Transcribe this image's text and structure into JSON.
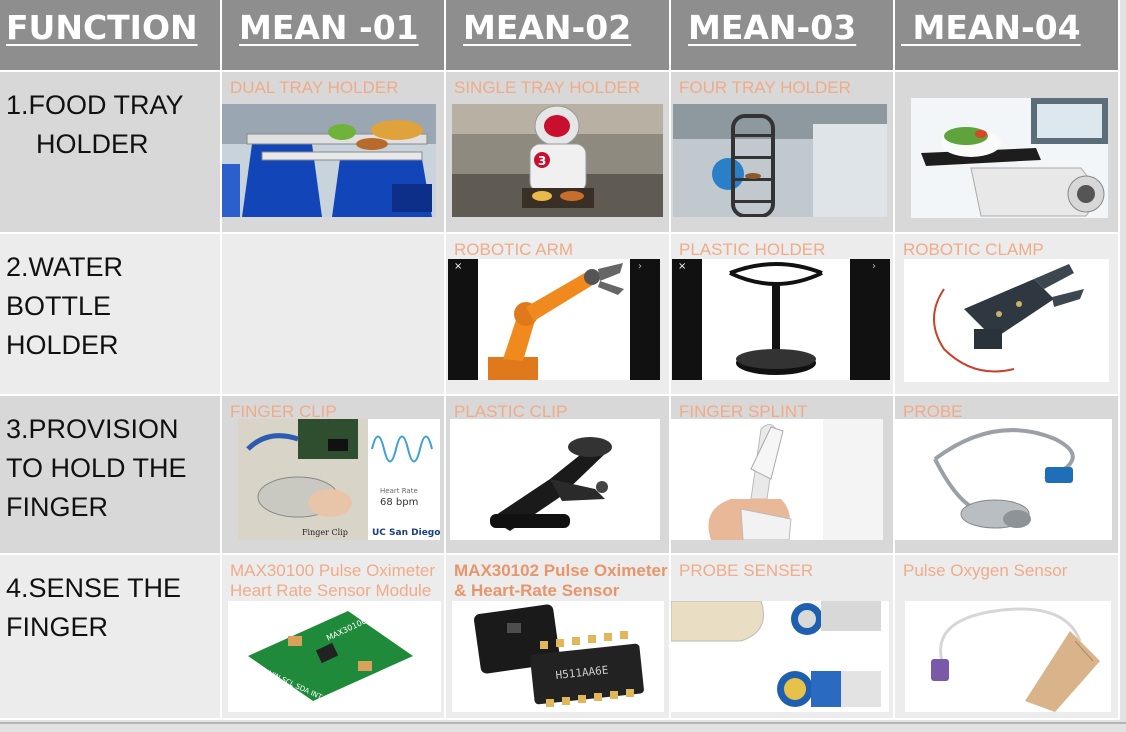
{
  "header": {
    "function": "FUNCTION",
    "mean1": "MEAN -01",
    "mean2": "MEAN-02",
    "mean3": "MEAN-03",
    "mean4": " MEAN-04"
  },
  "rows": [
    {
      "function": "1.FOOD TRAY\n    HOLDER",
      "means": [
        "DUAL TRAY HOLDER",
        "SINGLE TRAY HOLDER",
        "FOUR TRAY HOLDER",
        ""
      ]
    },
    {
      "function": "2.WATER\nBOTTLE\nHOLDER",
      "means": [
        "",
        "ROBOTIC ARM",
        "PLASTIC HOLDER",
        "ROBOTIC CLAMP"
      ]
    },
    {
      "function": "3.PROVISION\nTO HOLD THE\nFINGER",
      "means": [
        "FINGER CLIP",
        "PLASTIC CLIP",
        "FINGER SPLINT",
        "PROBE"
      ]
    },
    {
      "function": "4.SENSE THE\nFINGER",
      "means": [
        "MAX30100 Pulse Oximeter\nHeart Rate Sensor Module",
        "MAX30102 Pulse Oximeter\n& Heart-Rate Sensor",
        "PROBE SENSER",
        "Pulse Oxygen Sensor"
      ]
    }
  ],
  "image_text": {
    "heart_rate_label": "Heart Rate",
    "bpm": "68 bpm",
    "finger_clip_caption": "Finger Clip",
    "uc_logo": "UC San Diego",
    "chip_marking": "H511AA6E",
    "robot_badge": "3",
    "module_marking": "MAX30100",
    "module_pins": "VIN SCL SDA INT IRD RD GND"
  },
  "colors": {
    "header_bg": "#8e8e8e",
    "label_orange": "#f0ab88",
    "row_dark": "#d8d8d8",
    "row_light": "#ececec"
  }
}
